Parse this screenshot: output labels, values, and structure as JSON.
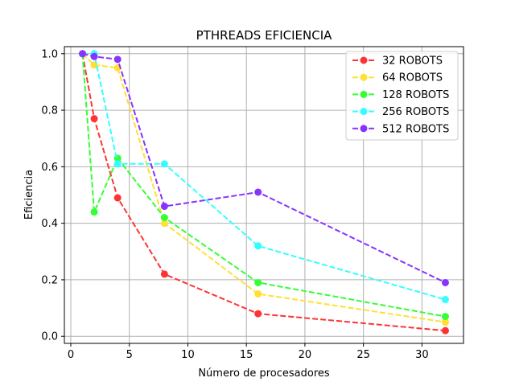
{
  "chart_data": {
    "type": "line",
    "title": "PTHREADS EFICIENCIA",
    "xlabel": "Número de procesadores",
    "ylabel": "Eficiencia",
    "xlim": [
      -0.55,
      33.55
    ],
    "ylim": [
      -0.025,
      1.025
    ],
    "xticks": [
      0,
      5,
      10,
      15,
      20,
      25,
      30
    ],
    "yticks": [
      0.0,
      0.2,
      0.4,
      0.6,
      0.8,
      1.0
    ],
    "xtick_labels": [
      "0",
      "5",
      "10",
      "15",
      "20",
      "25",
      "30"
    ],
    "ytick_labels": [
      "0.0",
      "0.2",
      "0.4",
      "0.6",
      "0.8",
      "1.0"
    ],
    "grid": true,
    "legend_position": "top-right",
    "line_style": "dashed",
    "marker": "circle",
    "x": [
      1,
      2,
      4,
      8,
      16,
      32
    ],
    "series": [
      {
        "name": "32 ROBOTS",
        "color": "#ff3333",
        "values": [
          1.0,
          0.77,
          0.49,
          0.22,
          0.08,
          0.02
        ]
      },
      {
        "name": "64 ROBOTS",
        "color": "#ffe033",
        "values": [
          1.0,
          0.96,
          0.95,
          0.4,
          0.15,
          0.05
        ]
      },
      {
        "name": "128 ROBOTS",
        "color": "#33ff33",
        "values": [
          1.0,
          0.44,
          0.63,
          0.42,
          0.19,
          0.07
        ]
      },
      {
        "name": "256 ROBOTS",
        "color": "#33ffff",
        "values": [
          1.0,
          1.0,
          0.61,
          0.61,
          0.32,
          0.13
        ]
      },
      {
        "name": "512 ROBOTS",
        "color": "#8833ff",
        "values": [
          1.0,
          0.99,
          0.98,
          0.46,
          0.51,
          0.19
        ]
      }
    ]
  }
}
